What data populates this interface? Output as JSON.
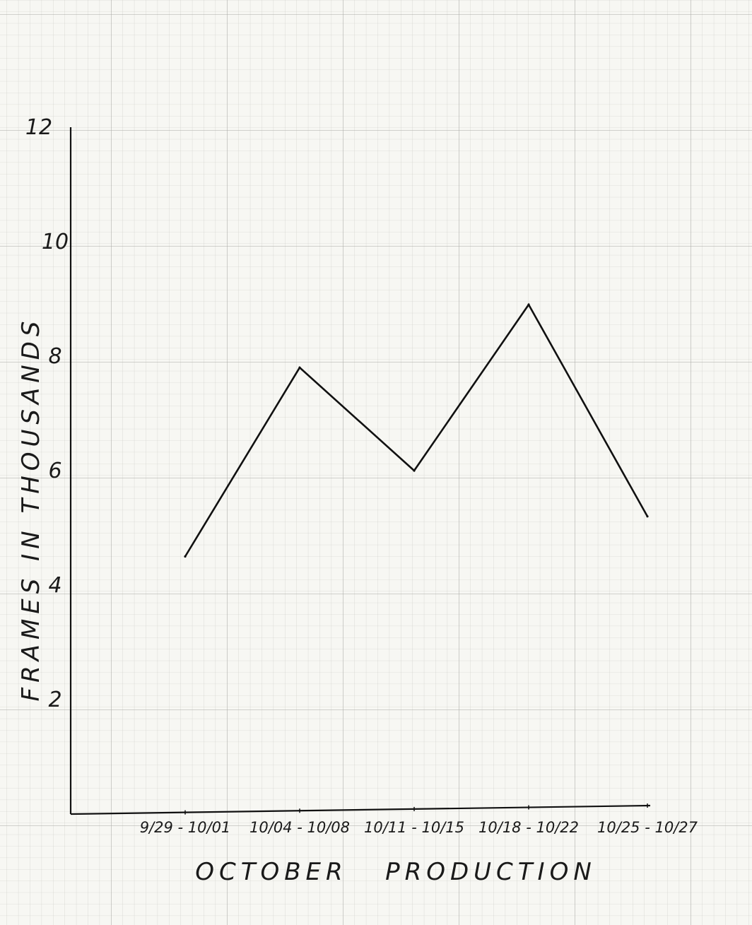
{
  "chart_data": {
    "type": "line",
    "xlabel": "OCTOBER   PRODUCTION",
    "ylabel": "FRAMES  IN  THOUSANDS",
    "categories": [
      "9/29 - 10/01",
      "10/04 - 10/08",
      "10/11 - 10/15",
      "10/18 - 10/22",
      "10/25 - 10/27"
    ],
    "series": [
      {
        "values": [
          4.5,
          7.8,
          6.0,
          8.9,
          5.2
        ]
      }
    ],
    "ylim": [
      0,
      12
    ],
    "yticks": [
      "2",
      "4",
      "6",
      "8",
      "10",
      "12"
    ],
    "grid": true,
    "line_color": "#111111"
  }
}
